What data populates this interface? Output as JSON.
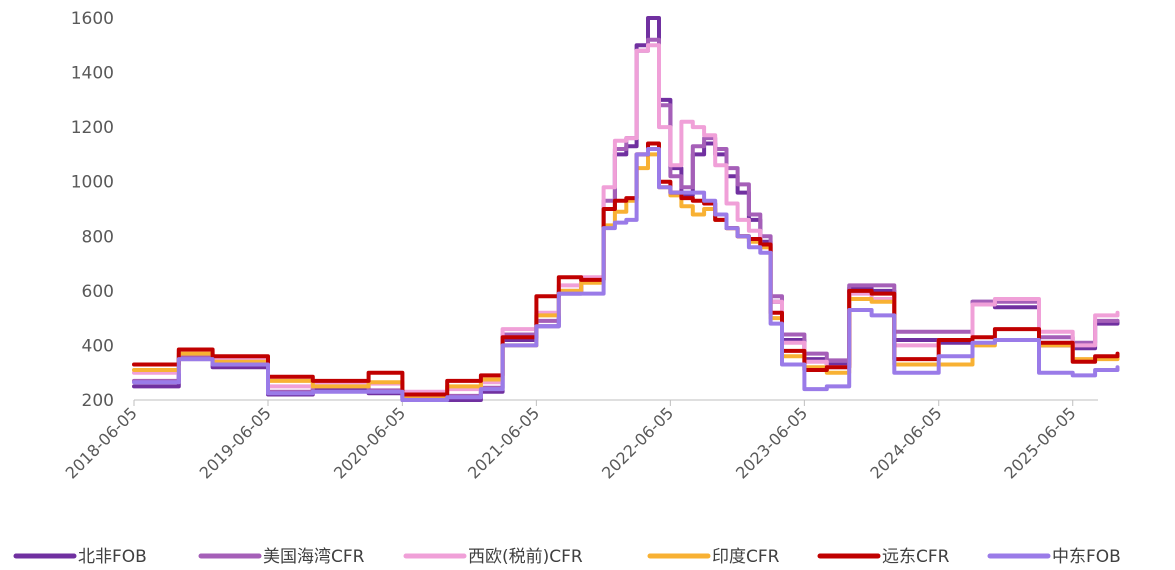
{
  "chart_data": {
    "type": "line",
    "title": "",
    "xlabel": "",
    "ylabel": "",
    "ylim": [
      200,
      1600
    ],
    "yticks": [
      200,
      400,
      600,
      800,
      1000,
      1200,
      1400,
      1600
    ],
    "xlim": [
      "2018-06-05",
      "2025-10-05"
    ],
    "xticks": [
      "2018-06-05",
      "2019-06-05",
      "2020-06-05",
      "2021-06-05",
      "2022-06-05",
      "2023-06-05",
      "2024-06-05",
      "2025-06-05"
    ],
    "grid": false,
    "legend_position": "bottom",
    "series": [
      {
        "name": "北非FOB",
        "color": "#7030a0",
        "points": [
          [
            "2018-06-05",
            250
          ],
          [
            "2018-10-05",
            350
          ],
          [
            "2019-01-05",
            320
          ],
          [
            "2019-06-05",
            220
          ],
          [
            "2019-10-05",
            240
          ],
          [
            "2020-03-05",
            225
          ],
          [
            "2020-06-05",
            200
          ],
          [
            "2020-10-05",
            200
          ],
          [
            "2021-01-05",
            230
          ],
          [
            "2021-03-05",
            420
          ],
          [
            "2021-06-05",
            470
          ],
          [
            "2021-08-05",
            590
          ],
          [
            "2021-10-05",
            640
          ],
          [
            "2021-12-05",
            900
          ],
          [
            "2022-01-05",
            1100
          ],
          [
            "2022-02-05",
            1130
          ],
          [
            "2022-03-05",
            1500
          ],
          [
            "2022-04-05",
            1600
          ],
          [
            "2022-05-05",
            1300
          ],
          [
            "2022-06-05",
            1050
          ],
          [
            "2022-07-05",
            950
          ],
          [
            "2022-08-05",
            1100
          ],
          [
            "2022-09-05",
            1140
          ],
          [
            "2022-10-05",
            1100
          ],
          [
            "2022-11-05",
            1020
          ],
          [
            "2022-12-05",
            960
          ],
          [
            "2023-01-05",
            860
          ],
          [
            "2023-02-05",
            780
          ],
          [
            "2023-03-05",
            560
          ],
          [
            "2023-04-05",
            420
          ],
          [
            "2023-06-05",
            350
          ],
          [
            "2023-08-05",
            330
          ],
          [
            "2023-10-05",
            610
          ],
          [
            "2023-12-05",
            600
          ],
          [
            "2024-02-05",
            420
          ],
          [
            "2024-06-05",
            410
          ],
          [
            "2024-09-05",
            560
          ],
          [
            "2024-11-05",
            540
          ],
          [
            "2025-03-05",
            400
          ],
          [
            "2025-06-05",
            390
          ],
          [
            "2025-08-05",
            480
          ],
          [
            "2025-10-05",
            490
          ]
        ]
      },
      {
        "name": "美国海湾CFR",
        "color": "#a55fb8",
        "points": [
          [
            "2018-06-05",
            270
          ],
          [
            "2018-10-05",
            360
          ],
          [
            "2019-01-05",
            330
          ],
          [
            "2019-06-05",
            230
          ],
          [
            "2019-10-05",
            250
          ],
          [
            "2020-03-05",
            235
          ],
          [
            "2020-06-05",
            210
          ],
          [
            "2020-10-05",
            215
          ],
          [
            "2021-01-05",
            245
          ],
          [
            "2021-03-05",
            440
          ],
          [
            "2021-06-05",
            490
          ],
          [
            "2021-08-05",
            600
          ],
          [
            "2021-10-05",
            640
          ],
          [
            "2021-12-05",
            930
          ],
          [
            "2022-01-05",
            1120
          ],
          [
            "2022-02-05",
            1160
          ],
          [
            "2022-03-05",
            1480
          ],
          [
            "2022-04-05",
            1520
          ],
          [
            "2022-05-05",
            1280
          ],
          [
            "2022-06-05",
            1020
          ],
          [
            "2022-07-05",
            980
          ],
          [
            "2022-08-05",
            1130
          ],
          [
            "2022-09-05",
            1160
          ],
          [
            "2022-10-05",
            1120
          ],
          [
            "2022-11-05",
            1050
          ],
          [
            "2022-12-05",
            990
          ],
          [
            "2023-01-05",
            880
          ],
          [
            "2023-02-05",
            800
          ],
          [
            "2023-03-05",
            580
          ],
          [
            "2023-04-05",
            440
          ],
          [
            "2023-06-05",
            370
          ],
          [
            "2023-08-05",
            345
          ],
          [
            "2023-10-05",
            620
          ],
          [
            "2023-12-05",
            620
          ],
          [
            "2024-02-05",
            450
          ],
          [
            "2024-06-05",
            450
          ],
          [
            "2024-09-05",
            560
          ],
          [
            "2024-11-05",
            560
          ],
          [
            "2025-03-05",
            430
          ],
          [
            "2025-06-05",
            410
          ],
          [
            "2025-08-05",
            490
          ],
          [
            "2025-10-05",
            490
          ]
        ]
      },
      {
        "name": "西欧(税前)CFR",
        "color": "#f0a0d8",
        "points": [
          [
            "2018-06-05",
            300
          ],
          [
            "2018-10-05",
            380
          ],
          [
            "2019-01-05",
            350
          ],
          [
            "2019-06-05",
            250
          ],
          [
            "2019-10-05",
            265
          ],
          [
            "2020-03-05",
            260
          ],
          [
            "2020-06-05",
            230
          ],
          [
            "2020-10-05",
            240
          ],
          [
            "2021-01-05",
            265
          ],
          [
            "2021-03-05",
            460
          ],
          [
            "2021-06-05",
            520
          ],
          [
            "2021-08-05",
            620
          ],
          [
            "2021-10-05",
            650
          ],
          [
            "2021-12-05",
            980
          ],
          [
            "2022-01-05",
            1150
          ],
          [
            "2022-02-05",
            1160
          ],
          [
            "2022-03-05",
            1480
          ],
          [
            "2022-04-05",
            1500
          ],
          [
            "2022-05-05",
            1200
          ],
          [
            "2022-06-05",
            1060
          ],
          [
            "2022-07-05",
            1220
          ],
          [
            "2022-08-05",
            1200
          ],
          [
            "2022-09-05",
            1170
          ],
          [
            "2022-10-05",
            1060
          ],
          [
            "2022-11-05",
            920
          ],
          [
            "2022-12-05",
            860
          ],
          [
            "2023-01-05",
            820
          ],
          [
            "2023-02-05",
            760
          ],
          [
            "2023-03-05",
            560
          ],
          [
            "2023-04-05",
            410
          ],
          [
            "2023-06-05",
            340
          ],
          [
            "2023-08-05",
            320
          ],
          [
            "2023-10-05",
            590
          ],
          [
            "2023-12-05",
            570
          ],
          [
            "2024-02-05",
            400
          ],
          [
            "2024-06-05",
            420
          ],
          [
            "2024-09-05",
            550
          ],
          [
            "2024-11-05",
            570
          ],
          [
            "2025-03-05",
            450
          ],
          [
            "2025-06-05",
            400
          ],
          [
            "2025-08-05",
            510
          ],
          [
            "2025-10-05",
            520
          ]
        ]
      },
      {
        "name": "印度CFR",
        "color": "#f8b133",
        "points": [
          [
            "2018-06-05",
            310
          ],
          [
            "2018-10-05",
            370
          ],
          [
            "2019-01-05",
            340
          ],
          [
            "2019-06-05",
            270
          ],
          [
            "2019-10-05",
            250
          ],
          [
            "2020-03-05",
            265
          ],
          [
            "2020-06-05",
            215
          ],
          [
            "2020-10-05",
            250
          ],
          [
            "2021-01-05",
            275
          ],
          [
            "2021-03-05",
            400
          ],
          [
            "2021-06-05",
            510
          ],
          [
            "2021-08-05",
            600
          ],
          [
            "2021-10-05",
            630
          ],
          [
            "2021-12-05",
            840
          ],
          [
            "2022-01-05",
            890
          ],
          [
            "2022-02-05",
            930
          ],
          [
            "2022-03-05",
            1050
          ],
          [
            "2022-04-05",
            1100
          ],
          [
            "2022-05-05",
            980
          ],
          [
            "2022-06-05",
            950
          ],
          [
            "2022-07-05",
            910
          ],
          [
            "2022-08-05",
            880
          ],
          [
            "2022-09-05",
            900
          ],
          [
            "2022-10-05",
            860
          ],
          [
            "2022-11-05",
            830
          ],
          [
            "2022-12-05",
            800
          ],
          [
            "2023-01-05",
            780
          ],
          [
            "2023-02-05",
            760
          ],
          [
            "2023-03-05",
            500
          ],
          [
            "2023-04-05",
            360
          ],
          [
            "2023-06-05",
            320
          ],
          [
            "2023-08-05",
            300
          ],
          [
            "2023-10-05",
            570
          ],
          [
            "2023-12-05",
            560
          ],
          [
            "2024-02-05",
            330
          ],
          [
            "2024-06-05",
            330
          ],
          [
            "2024-09-05",
            400
          ],
          [
            "2024-11-05",
            420
          ],
          [
            "2025-03-05",
            400
          ],
          [
            "2025-06-05",
            350
          ],
          [
            "2025-08-05",
            350
          ],
          [
            "2025-10-05",
            360
          ]
        ]
      },
      {
        "name": "远东CFR",
        "color": "#c00000",
        "points": [
          [
            "2018-06-05",
            330
          ],
          [
            "2018-10-05",
            385
          ],
          [
            "2019-01-05",
            360
          ],
          [
            "2019-06-05",
            285
          ],
          [
            "2019-10-05",
            270
          ],
          [
            "2020-03-05",
            300
          ],
          [
            "2020-06-05",
            220
          ],
          [
            "2020-10-05",
            270
          ],
          [
            "2021-01-05",
            290
          ],
          [
            "2021-03-05",
            430
          ],
          [
            "2021-06-05",
            580
          ],
          [
            "2021-08-05",
            650
          ],
          [
            "2021-10-05",
            640
          ],
          [
            "2021-12-05",
            900
          ],
          [
            "2022-01-05",
            930
          ],
          [
            "2022-02-05",
            940
          ],
          [
            "2022-03-05",
            1100
          ],
          [
            "2022-04-05",
            1140
          ],
          [
            "2022-05-05",
            1000
          ],
          [
            "2022-06-05",
            960
          ],
          [
            "2022-07-05",
            940
          ],
          [
            "2022-08-05",
            930
          ],
          [
            "2022-09-05",
            920
          ],
          [
            "2022-10-05",
            860
          ],
          [
            "2022-11-05",
            830
          ],
          [
            "2022-12-05",
            800
          ],
          [
            "2023-01-05",
            790
          ],
          [
            "2023-02-05",
            770
          ],
          [
            "2023-03-05",
            520
          ],
          [
            "2023-04-05",
            380
          ],
          [
            "2023-06-05",
            310
          ],
          [
            "2023-08-05",
            320
          ],
          [
            "2023-10-05",
            600
          ],
          [
            "2023-12-05",
            590
          ],
          [
            "2024-02-05",
            350
          ],
          [
            "2024-06-05",
            420
          ],
          [
            "2024-09-05",
            430
          ],
          [
            "2024-11-05",
            460
          ],
          [
            "2025-03-05",
            410
          ],
          [
            "2025-06-05",
            340
          ],
          [
            "2025-08-05",
            360
          ],
          [
            "2025-10-05",
            370
          ]
        ]
      },
      {
        "name": "中东FOB",
        "color": "#9a7be8",
        "points": [
          [
            "2018-06-05",
            265
          ],
          [
            "2018-10-05",
            350
          ],
          [
            "2019-01-05",
            330
          ],
          [
            "2019-06-05",
            225
          ],
          [
            "2019-10-05",
            230
          ],
          [
            "2020-03-05",
            230
          ],
          [
            "2020-06-05",
            200
          ],
          [
            "2020-10-05",
            210
          ],
          [
            "2021-01-05",
            240
          ],
          [
            "2021-03-05",
            400
          ],
          [
            "2021-06-05",
            470
          ],
          [
            "2021-08-05",
            590
          ],
          [
            "2021-10-05",
            590
          ],
          [
            "2021-12-05",
            830
          ],
          [
            "2022-01-05",
            850
          ],
          [
            "2022-02-05",
            860
          ],
          [
            "2022-03-05",
            1100
          ],
          [
            "2022-04-05",
            1120
          ],
          [
            "2022-05-05",
            980
          ],
          [
            "2022-06-05",
            960
          ],
          [
            "2022-07-05",
            960
          ],
          [
            "2022-08-05",
            960
          ],
          [
            "2022-09-05",
            930
          ],
          [
            "2022-10-05",
            880
          ],
          [
            "2022-11-05",
            830
          ],
          [
            "2022-12-05",
            800
          ],
          [
            "2023-01-05",
            760
          ],
          [
            "2023-02-05",
            740
          ],
          [
            "2023-03-05",
            480
          ],
          [
            "2023-04-05",
            330
          ],
          [
            "2023-06-05",
            240
          ],
          [
            "2023-08-05",
            250
          ],
          [
            "2023-10-05",
            530
          ],
          [
            "2023-12-05",
            510
          ],
          [
            "2024-02-05",
            300
          ],
          [
            "2024-06-05",
            360
          ],
          [
            "2024-09-05",
            410
          ],
          [
            "2024-11-05",
            420
          ],
          [
            "2025-03-05",
            300
          ],
          [
            "2025-06-05",
            290
          ],
          [
            "2025-08-05",
            310
          ],
          [
            "2025-10-05",
            320
          ]
        ]
      }
    ]
  }
}
